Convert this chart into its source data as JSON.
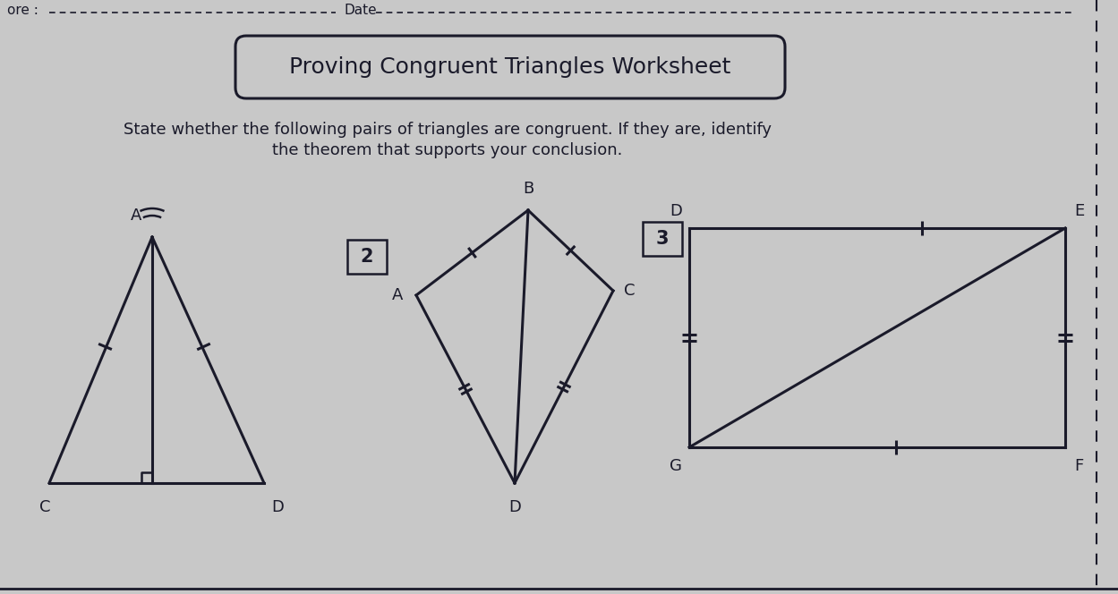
{
  "title": "Proving Congruent Triangles Worksheet",
  "subtitle_line1": "State whether the following pairs of triangles are congruent. If they are, identify",
  "subtitle_line2": "the theorem that supports your conclusion.",
  "bg_color": "#c8c8c8",
  "line_color": "#1a1a2a",
  "fig_w": 12.49,
  "fig_h": 6.64,
  "header_ore": "ore :",
  "header_date": "Date",
  "p2_label": "2",
  "p3_label": "3"
}
